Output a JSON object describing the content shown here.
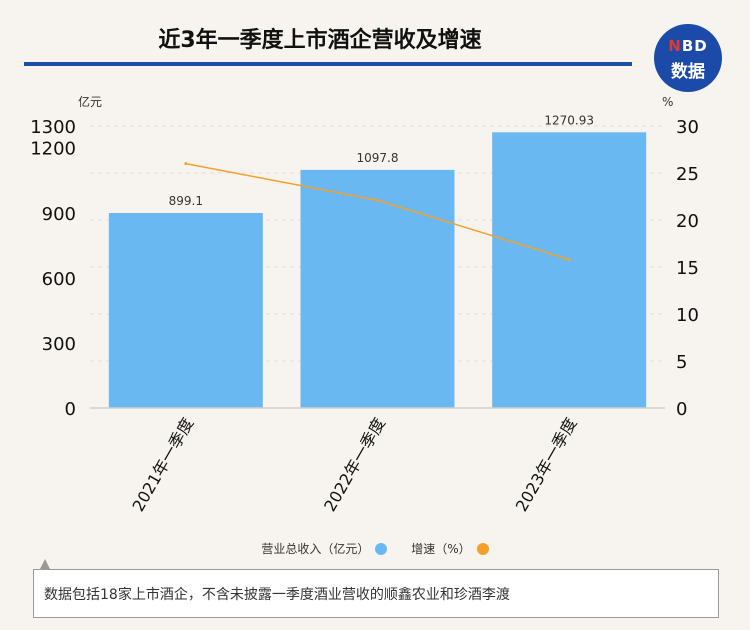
{
  "title": "近3年一季度上市酒企营收及增速",
  "logo": {
    "top": "NBD",
    "bottom": "数据"
  },
  "chart_data": {
    "type": "bar",
    "categories": [
      "2021年一季度",
      "2022年一季度",
      "2023年一季度"
    ],
    "series": [
      {
        "name": "营业总收入（亿元）",
        "type": "bar",
        "axis": "left",
        "values": [
          899.1,
          1097.8,
          1270.93
        ],
        "labels": [
          "899.1",
          "1097.8",
          "1270.93"
        ],
        "color": "#6ab8f2"
      },
      {
        "name": "增速（%）",
        "type": "line",
        "axis": "right",
        "values": [
          26,
          22.1,
          15.8
        ],
        "color": "#f5a02c"
      }
    ],
    "left_axis": {
      "unit": "亿元",
      "ticks": [
        0,
        300,
        600,
        900,
        1200,
        1300
      ],
      "ylim": [
        0,
        1300
      ]
    },
    "right_axis": {
      "unit": "%",
      "ticks": [
        0,
        5,
        10,
        15,
        20,
        25,
        30
      ],
      "ylim": [
        0,
        30
      ]
    },
    "grid": true,
    "legend_position": "bottom"
  },
  "note": "数据包括18家上市酒企，不含未披露一季度酒业营收的顺鑫农业和珍酒李渡"
}
